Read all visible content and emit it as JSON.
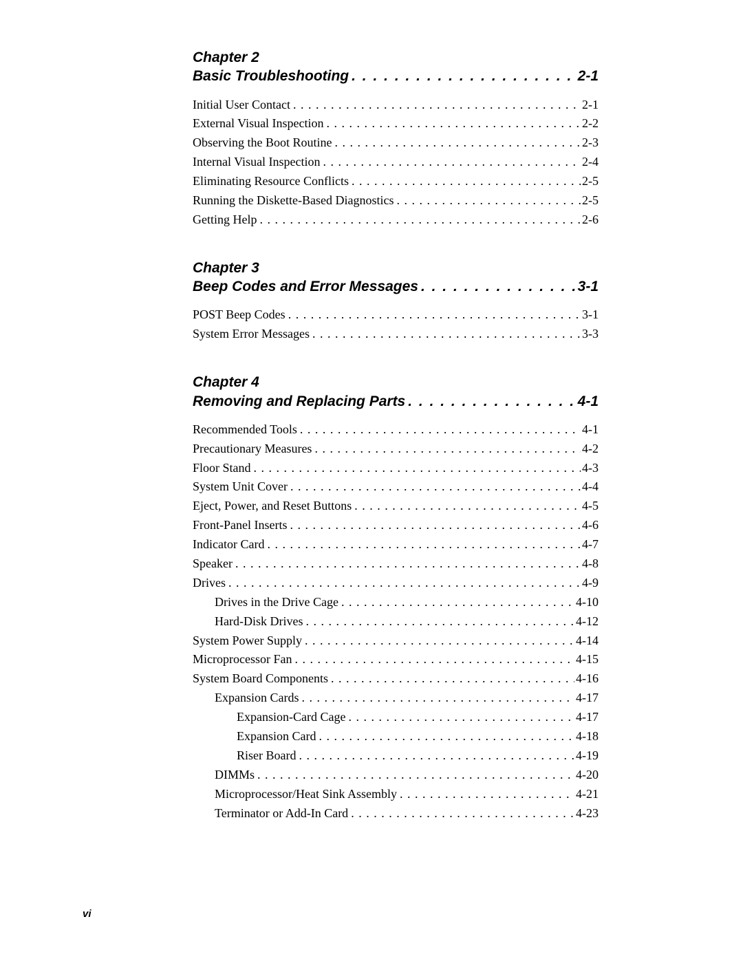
{
  "page_number": "vi",
  "colors": {
    "text": "#000000",
    "background": "#ffffff"
  },
  "typography": {
    "heading_font": "Helvetica",
    "heading_style": "bold italic",
    "heading_size_pt": 16,
    "body_font": "Times New Roman",
    "body_size_pt": 13
  },
  "chapters": [
    {
      "label": "Chapter 2",
      "title": "Basic Troubleshooting",
      "page": "2-1",
      "entries": [
        {
          "label": "Initial User Contact",
          "page": "2-1",
          "indent": 0
        },
        {
          "label": "External Visual Inspection",
          "page": "2-2",
          "indent": 0
        },
        {
          "label": "Observing the Boot Routine",
          "page": "2-3",
          "indent": 0
        },
        {
          "label": "Internal Visual Inspection",
          "page": "2-4",
          "indent": 0
        },
        {
          "label": "Eliminating Resource Conflicts",
          "page": "2-5",
          "indent": 0
        },
        {
          "label": "Running the Diskette-Based Diagnostics",
          "page": "2-5",
          "indent": 0
        },
        {
          "label": "Getting Help",
          "page": "2-6",
          "indent": 0
        }
      ]
    },
    {
      "label": "Chapter 3",
      "title": "Beep Codes and Error Messages",
      "page": "3-1",
      "entries": [
        {
          "label": "POST Beep Codes",
          "page": "3-1",
          "indent": 0
        },
        {
          "label": "System Error Messages",
          "page": "3-3",
          "indent": 0
        }
      ]
    },
    {
      "label": "Chapter 4",
      "title": "Removing and Replacing Parts",
      "page": "4-1",
      "entries": [
        {
          "label": "Recommended Tools",
          "page": "4-1",
          "indent": 0
        },
        {
          "label": "Precautionary Measures",
          "page": "4-2",
          "indent": 0
        },
        {
          "label": "Floor Stand",
          "page": "4-3",
          "indent": 0
        },
        {
          "label": "System Unit Cover",
          "page": "4-4",
          "indent": 0
        },
        {
          "label": "Eject, Power, and Reset Buttons",
          "page": "4-5",
          "indent": 0
        },
        {
          "label": "Front-Panel Inserts",
          "page": "4-6",
          "indent": 0
        },
        {
          "label": "Indicator Card",
          "page": "4-7",
          "indent": 0
        },
        {
          "label": "Speaker",
          "page": "4-8",
          "indent": 0
        },
        {
          "label": "Drives",
          "page": "4-9",
          "indent": 0
        },
        {
          "label": "Drives in the Drive Cage",
          "page": "4-10",
          "indent": 1
        },
        {
          "label": "Hard-Disk Drives",
          "page": "4-12",
          "indent": 1
        },
        {
          "label": "System Power Supply",
          "page": "4-14",
          "indent": 0
        },
        {
          "label": "Microprocessor Fan",
          "page": "4-15",
          "indent": 0
        },
        {
          "label": "System Board Components",
          "page": "4-16",
          "indent": 0
        },
        {
          "label": "Expansion Cards",
          "page": "4-17",
          "indent": 1
        },
        {
          "label": "Expansion-Card Cage",
          "page": "4-17",
          "indent": 2
        },
        {
          "label": "Expansion Card",
          "page": "4-18",
          "indent": 2
        },
        {
          "label": "Riser Board",
          "page": "4-19",
          "indent": 2
        },
        {
          "label": "DIMMs",
          "page": "4-20",
          "indent": 1
        },
        {
          "label": "Microprocessor/Heat Sink Assembly",
          "page": "4-21",
          "indent": 1
        },
        {
          "label": "Terminator or Add-In Card",
          "page": "4-23",
          "indent": 1
        }
      ]
    }
  ]
}
